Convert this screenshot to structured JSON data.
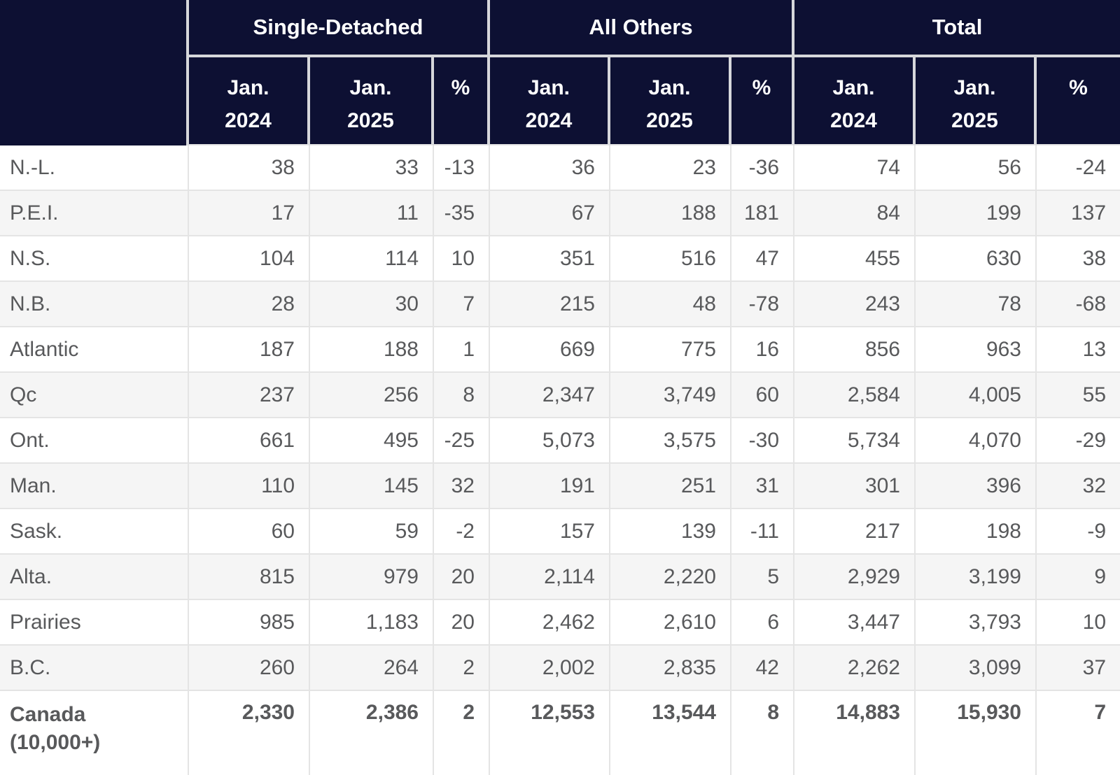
{
  "header": {
    "corner": "",
    "groups": [
      "Single-Detached",
      "All Others",
      "Total"
    ],
    "sub": [
      {
        "l1": "Jan.",
        "l2": "2024"
      },
      {
        "l1": "Jan.",
        "l2": "2025"
      },
      {
        "l1": "%",
        "l2": ""
      },
      {
        "l1": "Jan.",
        "l2": "2024"
      },
      {
        "l1": "Jan.",
        "l2": "2025"
      },
      {
        "l1": "%",
        "l2": ""
      },
      {
        "l1": "Jan.",
        "l2": "2024"
      },
      {
        "l1": "Jan.",
        "l2": "2025"
      },
      {
        "l1": "%",
        "l2": ""
      }
    ]
  },
  "rows": [
    {
      "region": [
        "N.-L."
      ],
      "bold": false,
      "values": [
        "38",
        "33",
        "-13",
        "36",
        "23",
        "-36",
        "74",
        "56",
        "-24"
      ]
    },
    {
      "region": [
        "P.E.I."
      ],
      "bold": false,
      "values": [
        "17",
        "11",
        "-35",
        "67",
        "188",
        "181",
        "84",
        "199",
        "137"
      ]
    },
    {
      "region": [
        "N.S."
      ],
      "bold": false,
      "values": [
        "104",
        "114",
        "10",
        "351",
        "516",
        "47",
        "455",
        "630",
        "38"
      ]
    },
    {
      "region": [
        "N.B."
      ],
      "bold": false,
      "values": [
        "28",
        "30",
        "7",
        "215",
        "48",
        "-78",
        "243",
        "78",
        "-68"
      ]
    },
    {
      "region": [
        "Atlantic"
      ],
      "bold": false,
      "values": [
        "187",
        "188",
        "1",
        "669",
        "775",
        "16",
        "856",
        "963",
        "13"
      ]
    },
    {
      "region": [
        "Qc"
      ],
      "bold": false,
      "values": [
        "237",
        "256",
        "8",
        "2,347",
        "3,749",
        "60",
        "2,584",
        "4,005",
        "55"
      ]
    },
    {
      "region": [
        "Ont."
      ],
      "bold": false,
      "values": [
        "661",
        "495",
        "-25",
        "5,073",
        "3,575",
        "-30",
        "5,734",
        "4,070",
        "-29"
      ]
    },
    {
      "region": [
        "Man."
      ],
      "bold": false,
      "values": [
        "110",
        "145",
        "32",
        "191",
        "251",
        "31",
        "301",
        "396",
        "32"
      ]
    },
    {
      "region": [
        "Sask."
      ],
      "bold": false,
      "values": [
        "60",
        "59",
        "-2",
        "157",
        "139",
        "-11",
        "217",
        "198",
        "-9"
      ]
    },
    {
      "region": [
        "Alta."
      ],
      "bold": false,
      "values": [
        "815",
        "979",
        "20",
        "2,114",
        "2,220",
        "5",
        "2,929",
        "3,199",
        "9"
      ]
    },
    {
      "region": [
        "Prairies"
      ],
      "bold": false,
      "values": [
        "985",
        "1,183",
        "20",
        "2,462",
        "2,610",
        "6",
        "3,447",
        "3,793",
        "10"
      ]
    },
    {
      "region": [
        "B.C."
      ],
      "bold": false,
      "values": [
        "260",
        "264",
        "2",
        "2,002",
        "2,835",
        "42",
        "2,262",
        "3,099",
        "37"
      ]
    },
    {
      "region": [
        "Canada",
        "(10,000+)"
      ],
      "bold": true,
      "values": [
        "2,330",
        "2,386",
        "2",
        "12,553",
        "13,544",
        "8",
        "14,883",
        "15,930",
        "7"
      ]
    }
  ],
  "colors": {
    "header_bg": "#0d1033",
    "header_text": "#ffffff",
    "header_border": "#d6d7db",
    "body_text": "#58595b",
    "stripe": "#f5f5f5",
    "border": "#e4e4e4"
  }
}
